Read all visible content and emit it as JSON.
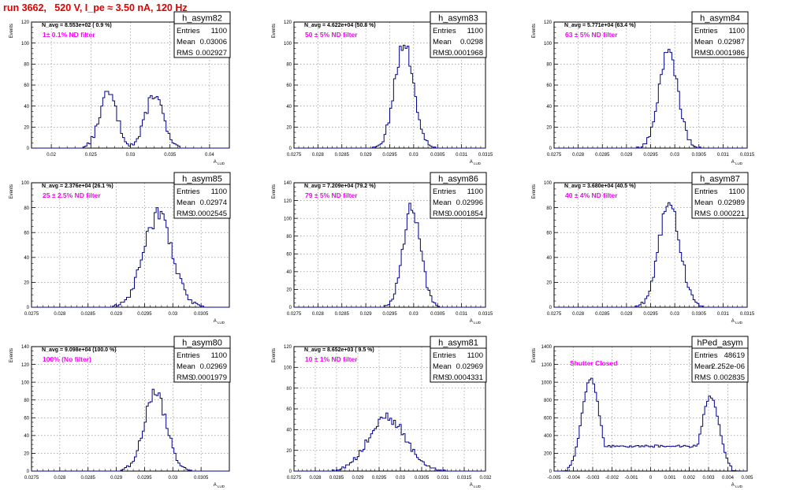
{
  "page": {
    "title": "run 3662,   520 V, I_pe ≈ 3.50 nA, 120 Hz"
  },
  "colors": {
    "title": "#e00000",
    "annotation": "#ff00ff",
    "histogram": "#00008b",
    "grid": "#808080",
    "axis": "#000000"
  },
  "chart_data": [
    {
      "type": "histogram",
      "name": "h_asym82",
      "n_avg_text": "N_avg = 8.553e+02 ( 0.9 %)",
      "annotation": "1± 0.1% ND filter",
      "stats": {
        "entries_label": "Entries",
        "entries": "1100",
        "mean_label": "Mean",
        "mean": "0.03006",
        "rms_label": "RMS",
        "rms": "0.002927"
      },
      "xlim": [
        0.0175,
        0.0425
      ],
      "ylim": [
        0,
        120
      ],
      "xticks": [
        "0.02",
        "0.025",
        "0.03",
        "0.035",
        "0.04"
      ],
      "xtick_values": [
        0.02,
        0.025,
        0.03,
        0.035,
        0.04
      ],
      "yticks": [
        "0",
        "20",
        "40",
        "60",
        "80",
        "100",
        "120"
      ],
      "ytick_values": [
        0,
        20,
        40,
        60,
        80,
        100,
        120
      ],
      "ylabel": "Events",
      "xlabel": "A_LUD",
      "shape": {
        "kind": "bimodal",
        "peaks": [
          {
            "mu": 0.0272,
            "sigma": 0.0011,
            "amp": 52
          },
          {
            "mu": 0.033,
            "sigma": 0.0011,
            "amp": 52
          }
        ]
      }
    },
    {
      "type": "histogram",
      "name": "h_asym83",
      "n_avg_text": "N_avg = 4.622e+04 (50.8 %)",
      "annotation": "50 ± 5% ND filter",
      "stats": {
        "entries_label": "Entries",
        "entries": "1100",
        "mean_label": "Mean",
        "mean": "0.0298",
        "rms_label": "RMS",
        "rms": "0.0001968"
      },
      "xlim": [
        0.0275,
        0.0315
      ],
      "ylim": [
        0,
        120
      ],
      "xticks": [
        "0.0275",
        "0.028",
        "0.0285",
        "0.029",
        "0.0295",
        "0.03",
        "0.0305",
        "0.031",
        "0.0315"
      ],
      "xtick_values": [
        0.0275,
        0.028,
        0.0285,
        0.029,
        0.0295,
        0.03,
        0.0305,
        0.031,
        0.0315
      ],
      "yticks": [
        "0",
        "20",
        "40",
        "60",
        "80",
        "100",
        "120"
      ],
      "ytick_values": [
        0,
        20,
        40,
        60,
        80,
        100,
        120
      ],
      "ylabel": "Events",
      "xlabel": "A_LUD",
      "shape": {
        "kind": "gauss",
        "peaks": [
          {
            "mu": 0.0298,
            "sigma": 0.000197,
            "amp": 100
          }
        ]
      }
    },
    {
      "type": "histogram",
      "name": "h_asym84",
      "n_avg_text": "N_avg = 5.771e+04 (63.4 %)",
      "annotation": "63 ± 5% ND filter",
      "stats": {
        "entries_label": "Entries",
        "entries": "1100",
        "mean_label": "Mean",
        "mean": "0.02987",
        "rms_label": "RMS",
        "rms": "0.0001986"
      },
      "xlim": [
        0.0275,
        0.0315
      ],
      "ylim": [
        0,
        120
      ],
      "xticks": [
        "0.0275",
        "0.028",
        "0.0285",
        "0.029",
        "0.0295",
        "0.03",
        "0.0305",
        "0.031",
        "0.0315"
      ],
      "xtick_values": [
        0.0275,
        0.028,
        0.0285,
        0.029,
        0.0295,
        0.03,
        0.0305,
        0.031,
        0.0315
      ],
      "yticks": [
        "0",
        "20",
        "40",
        "60",
        "80",
        "100",
        "120"
      ],
      "ytick_values": [
        0,
        20,
        40,
        60,
        80,
        100,
        120
      ],
      "ylabel": "Events",
      "xlabel": "A_LUD",
      "shape": {
        "kind": "gauss",
        "peaks": [
          {
            "mu": 0.02987,
            "sigma": 0.000199,
            "amp": 90
          }
        ]
      }
    },
    {
      "type": "histogram",
      "name": "h_asym85",
      "n_avg_text": "N_avg = 2.376e+04 (26.1 %)",
      "annotation": "25 ± 2.5% ND filter",
      "stats": {
        "entries_label": "Entries",
        "entries": "1100",
        "mean_label": "Mean",
        "mean": "0.02974",
        "rms_label": "RMS",
        "rms": "0.0002545"
      },
      "xlim": [
        0.0275,
        0.031
      ],
      "ylim": [
        0,
        100
      ],
      "xticks": [
        "0.0275",
        "0.028",
        "0.0285",
        "0.029",
        "0.0295",
        "0.03",
        "0.0305"
      ],
      "xtick_values": [
        0.0275,
        0.028,
        0.0285,
        0.029,
        0.0295,
        0.03,
        0.0305
      ],
      "yticks": [
        "0",
        "20",
        "40",
        "60",
        "80",
        "100"
      ],
      "ytick_values": [
        0,
        20,
        40,
        60,
        80,
        100
      ],
      "ylabel": "Events",
      "xlabel": "A_LUD",
      "shape": {
        "kind": "gauss",
        "peaks": [
          {
            "mu": 0.02974,
            "sigma": 0.000254,
            "amp": 74
          }
        ]
      }
    },
    {
      "type": "histogram",
      "name": "h_asym86",
      "n_avg_text": "N_avg = 7.209e+04 (79.2 %)",
      "annotation": "79 ± 5% ND filter",
      "stats": {
        "entries_label": "Entries",
        "entries": "1100",
        "mean_label": "Mean",
        "mean": "0.02996",
        "rms_label": "RMS",
        "rms": "0.0001854"
      },
      "xlim": [
        0.0275,
        0.0315
      ],
      "ylim": [
        0,
        140
      ],
      "xticks": [
        "0.0275",
        "0.028",
        "0.0285",
        "0.029",
        "0.0295",
        "0.03",
        "0.0305",
        "0.031",
        "0.0315"
      ],
      "xtick_values": [
        0.0275,
        0.028,
        0.0285,
        0.029,
        0.0295,
        0.03,
        0.0305,
        0.031,
        0.0315
      ],
      "yticks": [
        "0",
        "20",
        "40",
        "60",
        "80",
        "100",
        "120",
        "140"
      ],
      "ytick_values": [
        0,
        20,
        40,
        60,
        80,
        100,
        120,
        140
      ],
      "ylabel": "Events",
      "xlabel": "A_LUD",
      "shape": {
        "kind": "gauss",
        "peaks": [
          {
            "mu": 0.02996,
            "sigma": 0.000185,
            "amp": 112
          }
        ]
      }
    },
    {
      "type": "histogram",
      "name": "h_asym87",
      "n_avg_text": "N_avg = 3.680e+04 (40.5 %)",
      "annotation": "40 ± 4% ND filter",
      "stats": {
        "entries_label": "Entries",
        "entries": "1100",
        "mean_label": "Mean",
        "mean": "0.02989",
        "rms_label": "RMS",
        "rms": "0.000221"
      },
      "xlim": [
        0.0275,
        0.0315
      ],
      "ylim": [
        0,
        100
      ],
      "xticks": [
        "0.0275",
        "0.028",
        "0.0285",
        "0.029",
        "0.0295",
        "0.03",
        "0.0305",
        "0.031",
        "0.0315"
      ],
      "xtick_values": [
        0.0275,
        0.028,
        0.0285,
        0.029,
        0.0295,
        0.03,
        0.0305,
        0.031,
        0.0315
      ],
      "yticks": [
        "0",
        "20",
        "40",
        "60",
        "80",
        "100"
      ],
      "ytick_values": [
        0,
        20,
        40,
        60,
        80,
        100
      ],
      "ylabel": "Events",
      "xlabel": "A_LUD",
      "shape": {
        "kind": "gauss",
        "peaks": [
          {
            "mu": 0.02989,
            "sigma": 0.000221,
            "amp": 82
          }
        ]
      }
    },
    {
      "type": "histogram",
      "name": "h_asym80",
      "n_avg_text": "N_avg = 9.098e+04 (100.0 %)",
      "annotation": "100% (No filter)",
      "stats": {
        "entries_label": "Entries",
        "entries": "1100",
        "mean_label": "Mean",
        "mean": "0.02969",
        "rms_label": "RMS",
        "rms": "0.0001979"
      },
      "xlim": [
        0.0275,
        0.031
      ],
      "ylim": [
        0,
        140
      ],
      "xticks": [
        "0.0275",
        "0.028",
        "0.0285",
        "0.029",
        "0.0295",
        "0.03",
        "0.0305"
      ],
      "xtick_values": [
        0.0275,
        0.028,
        0.0285,
        0.029,
        0.0295,
        0.03,
        0.0305
      ],
      "yticks": [
        "0",
        "20",
        "40",
        "60",
        "80",
        "100",
        "120",
        "140"
      ],
      "ytick_values": [
        0,
        20,
        40,
        60,
        80,
        100,
        120,
        140
      ],
      "ylabel": "Events",
      "xlabel": "A_LUD",
      "shape": {
        "kind": "gauss",
        "peaks": [
          {
            "mu": 0.02969,
            "sigma": 0.000198,
            "amp": 88
          }
        ]
      }
    },
    {
      "type": "histogram",
      "name": "h_asym81",
      "n_avg_text": "N_avg = 8.652e+03 ( 9.5 %)",
      "annotation": "10 ± 1% ND filter",
      "stats": {
        "entries_label": "Entries",
        "entries": "1100",
        "mean_label": "Mean",
        "mean": "0.02969",
        "rms_label": "RMS",
        "rms": "0.0004331"
      },
      "xlim": [
        0.0275,
        0.032
      ],
      "ylim": [
        0,
        120
      ],
      "xticks": [
        "0.0275",
        "0.028",
        "0.0285",
        "0.029",
        "0.0295",
        "0.03",
        "0.0305",
        "0.031",
        "0.0315",
        "0.032"
      ],
      "xtick_values": [
        0.0275,
        0.028,
        0.0285,
        0.029,
        0.0295,
        0.03,
        0.0305,
        0.031,
        0.0315,
        0.032
      ],
      "yticks": [
        "0",
        "20",
        "40",
        "60",
        "80",
        "100",
        "120"
      ],
      "ytick_values": [
        0,
        20,
        40,
        60,
        80,
        100,
        120
      ],
      "ylabel": "Events",
      "xlabel": "A_LUD",
      "shape": {
        "kind": "gauss",
        "peaks": [
          {
            "mu": 0.02969,
            "sigma": 0.000433,
            "amp": 52
          }
        ]
      }
    },
    {
      "type": "histogram",
      "name": "hPed_asym",
      "n_avg_text": "",
      "annotation": "Shutter Closed",
      "stats": {
        "entries_label": "Entries",
        "entries": "48619",
        "mean_label": "Mean",
        "mean": "2.252e-06",
        "rms_label": "RMS",
        "rms": "0.002835"
      },
      "xlim": [
        -0.005,
        0.005
      ],
      "ylim": [
        0,
        1400
      ],
      "xticks": [
        "-0.005",
        "-0.004",
        "-0.003",
        "-0.002",
        "-0.001",
        "0",
        "0.001",
        "0.002",
        "0.003",
        "0.004",
        "0.005"
      ],
      "xtick_values": [
        -0.005,
        -0.004,
        -0.003,
        -0.002,
        -0.001,
        0,
        0.001,
        0.002,
        0.003,
        0.004,
        0.005
      ],
      "yticks": [
        "0",
        "200",
        "400",
        "600",
        "800",
        "1000",
        "1200",
        "1400"
      ],
      "ytick_values": [
        0,
        200,
        400,
        600,
        800,
        1000,
        1200,
        1400
      ],
      "ylabel": "Events",
      "xlabel": "A_LUD",
      "shape": {
        "kind": "pedestal",
        "peaks": [
          {
            "mu": -0.0031,
            "sigma": 0.00045,
            "amp": 1050
          },
          {
            "mu": 0.0031,
            "sigma": 0.00045,
            "amp": 850
          }
        ],
        "floor": 280
      }
    }
  ]
}
